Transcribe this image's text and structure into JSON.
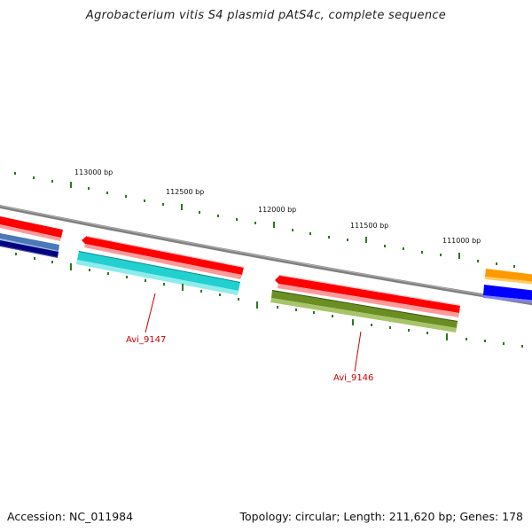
{
  "title": "Agrobacterium vitis S4 plasmid pAtS4c, complete sequence",
  "footer": {
    "accession": "Accession: NC_011984",
    "summary": "Topology: circular; Length: 211,620 bp; Genes: 178"
  },
  "ticks": [
    "113000 bp",
    "112500 bp",
    "112000 bp",
    "111500 bp",
    "111000 bp"
  ],
  "gene_labels": [
    "Avi_9147",
    "Avi_9146"
  ],
  "colors": {
    "backbone": "#808080",
    "tick": "#2a7a1a",
    "label": "#cc0000",
    "red": "#ff0000",
    "cyan": "#22d0d0",
    "olive": "#6b8e23",
    "steelblue": "#4a78b8",
    "navy": "#000080",
    "orange": "#ff9900",
    "blue": "#0000ff"
  }
}
